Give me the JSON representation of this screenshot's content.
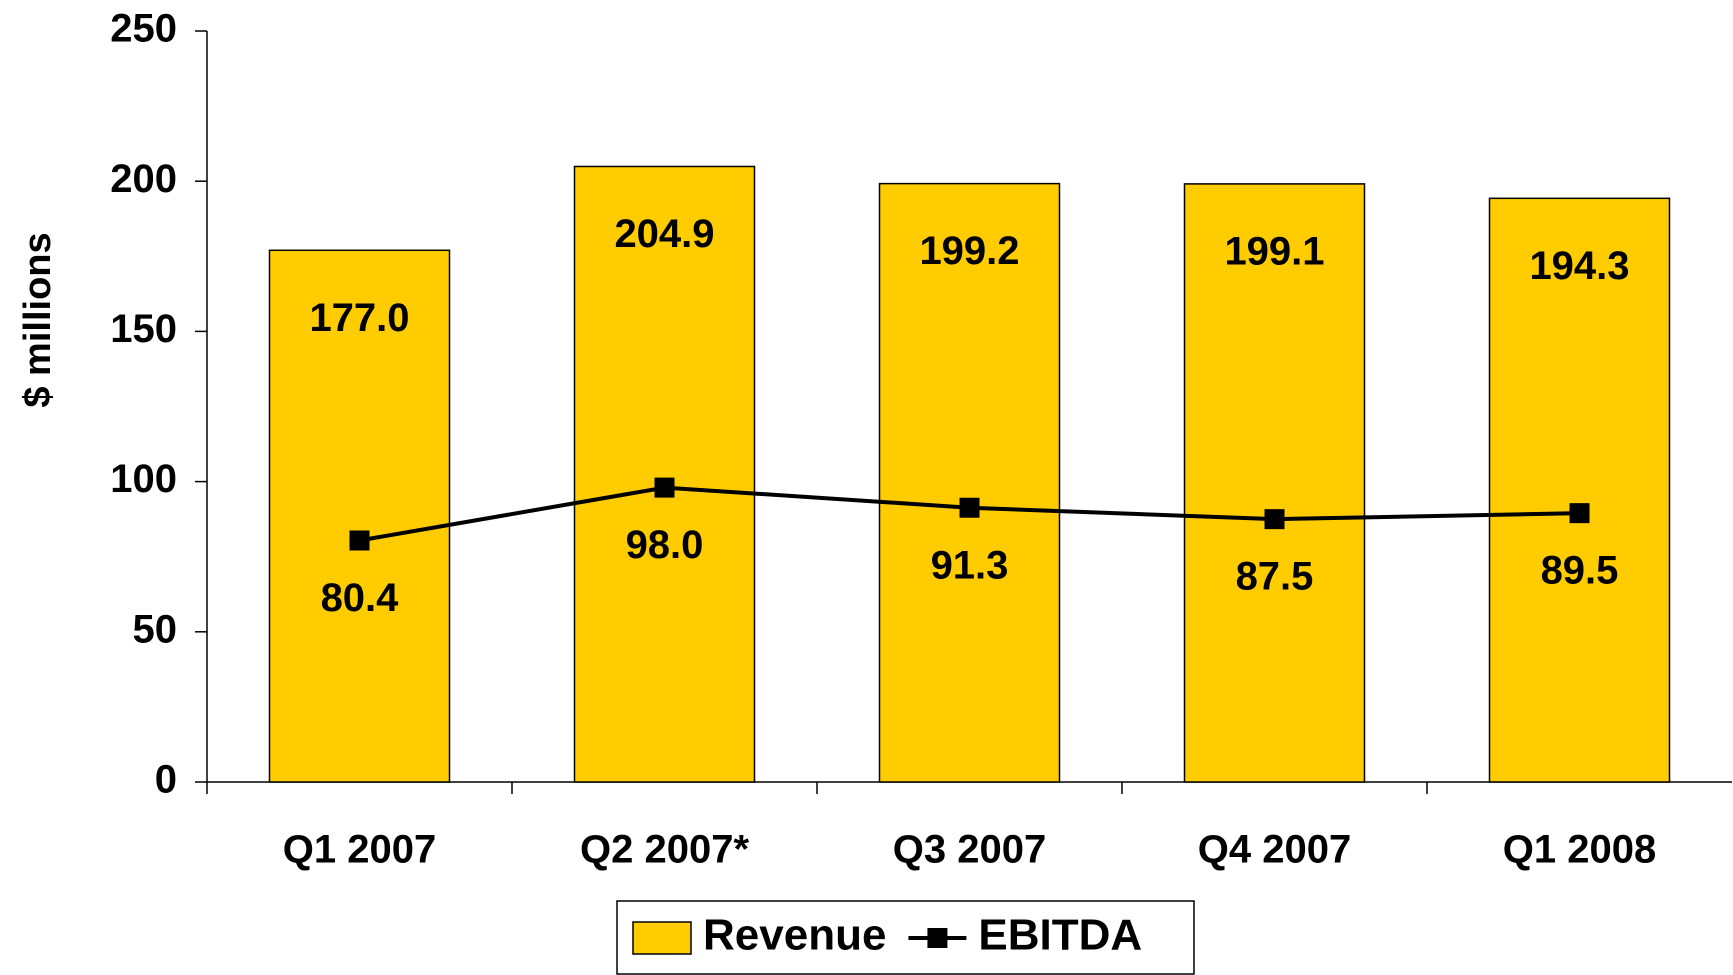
{
  "chart_data": {
    "type": "bar",
    "categories": [
      "Q1 2007",
      "Q2 2007*",
      "Q3 2007",
      "Q4 2007",
      "Q1 2008"
    ],
    "series": [
      {
        "name": "Revenue",
        "type": "bar",
        "color": "#ffcc00",
        "values": [
          177.0,
          204.9,
          199.2,
          199.1,
          194.3
        ],
        "value_labels": [
          "177.0",
          "204.9",
          "199.2",
          "199.1",
          "194.3"
        ]
      },
      {
        "name": "EBITDA",
        "type": "line",
        "color": "#000000",
        "values": [
          80.4,
          98.0,
          91.3,
          87.5,
          89.5
        ],
        "value_labels": [
          "80.4",
          "98.0",
          "91.3",
          "87.5",
          "89.5"
        ]
      }
    ],
    "ylabel": "$ millions",
    "ylim": [
      0,
      250
    ],
    "yticks": [
      0,
      50,
      100,
      150,
      200,
      250
    ],
    "legend": "bottom"
  }
}
